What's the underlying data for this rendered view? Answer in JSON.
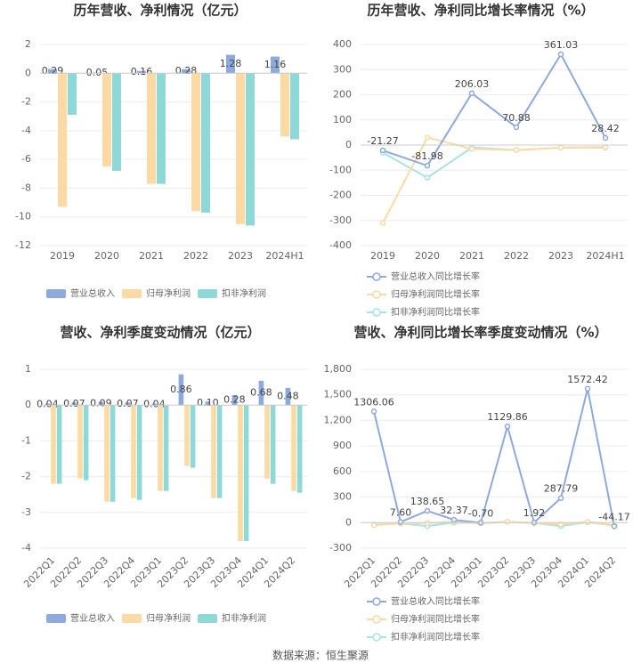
{
  "chart_data": [
    {
      "type": "bar",
      "title": "历年营收、净利情况（亿元）",
      "categories": [
        "2019",
        "2020",
        "2021",
        "2022",
        "2023",
        "2024H1"
      ],
      "series": [
        {
          "name": "营业总收入",
          "color": "#8eaadb",
          "values": [
            0.29,
            0.05,
            0.16,
            0.28,
            1.28,
            1.16
          ]
        },
        {
          "name": "归母净利润",
          "color": "#fdd9a3",
          "values": [
            -9.3,
            -6.5,
            -7.7,
            -9.6,
            -10.5,
            -4.4
          ]
        },
        {
          "name": "扣非净利润",
          "color": "#8ed8d8",
          "values": [
            -2.9,
            -6.8,
            -7.7,
            -9.7,
            -10.6,
            -4.6
          ]
        }
      ],
      "ylim": [
        -12,
        2
      ],
      "yticks": [
        -12,
        -10,
        -8,
        -6,
        -4,
        -2,
        0,
        2
      ],
      "grid": true,
      "legend": "bottom"
    },
    {
      "type": "line",
      "title": "历年营收、净利同比增长率情况（%）",
      "categories": [
        "2019",
        "2020",
        "2021",
        "2022",
        "2023",
        "2024H1"
      ],
      "series": [
        {
          "name": "营业总收入同比增长率",
          "color": "#8eaadb",
          "values": [
            -21.27,
            -81.98,
            206.03,
            70.88,
            361.03,
            28.42
          ]
        },
        {
          "name": "归母净利润同比增长率",
          "color": "#fdd9a3",
          "values": [
            -310,
            30,
            -15,
            -20,
            -10,
            -8
          ]
        },
        {
          "name": "扣非净利润同比增长率",
          "color": "#a8e3e3",
          "values": [
            -30,
            -130,
            -10,
            -20,
            -10,
            -10
          ]
        }
      ],
      "ylim": [
        -400,
        400
      ],
      "yticks": [
        -400,
        -300,
        -200,
        -100,
        0,
        100,
        200,
        300,
        400
      ],
      "grid": true,
      "legend": "bottom"
    },
    {
      "type": "bar",
      "title": "营收、净利季度变动情况（亿元）",
      "categories": [
        "2022Q1",
        "2022Q2",
        "2022Q3",
        "2022Q4",
        "2023Q1",
        "2023Q2",
        "2023Q3",
        "2023Q4",
        "2024Q1",
        "2024Q2"
      ],
      "series": [
        {
          "name": "营业总收入",
          "color": "#8eaadb",
          "values": [
            0.04,
            0.07,
            0.09,
            0.07,
            0.04,
            0.86,
            0.1,
            0.28,
            0.68,
            0.48
          ],
          "value_labels": [
            "0.04",
            "0.07",
            "0.09",
            "0.07",
            "0.04",
            "0.86",
            "0.10",
            "0.28",
            "0.68",
            "0.48"
          ]
        },
        {
          "name": "归母净利润",
          "color": "#fdd9a3",
          "values": [
            -2.2,
            -2.05,
            -2.7,
            -2.6,
            -2.4,
            -1.7,
            -2.6,
            -3.8,
            -2.05,
            -2.4
          ]
        },
        {
          "name": "扣非净利润",
          "color": "#8ed8d8",
          "values": [
            -2.2,
            -2.1,
            -2.7,
            -2.65,
            -2.4,
            -1.75,
            -2.6,
            -3.8,
            -2.2,
            -2.45
          ]
        }
      ],
      "ylim": [
        -4,
        1
      ],
      "yticks": [
        -4,
        -3,
        -2,
        -1,
        0,
        1
      ],
      "grid": true,
      "legend": "bottom"
    },
    {
      "type": "line",
      "title": "营收、净利同比增长率季度变动情况（%）",
      "categories": [
        "2022Q1",
        "2022Q2",
        "2022Q3",
        "2022Q4",
        "2023Q1",
        "2023Q2",
        "2023Q3",
        "2023Q4",
        "2024Q1",
        "2024Q2"
      ],
      "series": [
        {
          "name": "营业总收入同比增长率",
          "color": "#8eaadb",
          "values": [
            1306.06,
            7.6,
            138.65,
            32.37,
            -0.7,
            1129.86,
            1.92,
            287.79,
            1572.42,
            -44.17
          ],
          "value_labels": [
            "1306.06",
            "7.60",
            "138.65",
            "32.37",
            "-0.70",
            "1129.86",
            "1.92",
            "287.79",
            "1572.42",
            "-44.17"
          ]
        },
        {
          "name": "归母净利润同比增长率",
          "color": "#fdd9a3",
          "values": [
            -30,
            -10,
            -5,
            10,
            -10,
            10,
            -5,
            -20,
            10,
            -30
          ]
        },
        {
          "name": "扣非净利润同比增长率",
          "color": "#a8e3e3",
          "values": [
            -25,
            -10,
            -40,
            0,
            -5,
            10,
            -5,
            -40,
            5,
            -35
          ]
        }
      ],
      "ylim": [
        -300,
        1800
      ],
      "yticks": [
        -300,
        0,
        300,
        600,
        900,
        {
          "value": 1200,
          "label": "1,200"
        },
        {
          "value": 1500,
          "label": "1,500"
        },
        {
          "value": 1800,
          "label": "1,800"
        }
      ],
      "grid": true,
      "legend": "bottom"
    }
  ],
  "source": "数据来源：恒生聚源"
}
